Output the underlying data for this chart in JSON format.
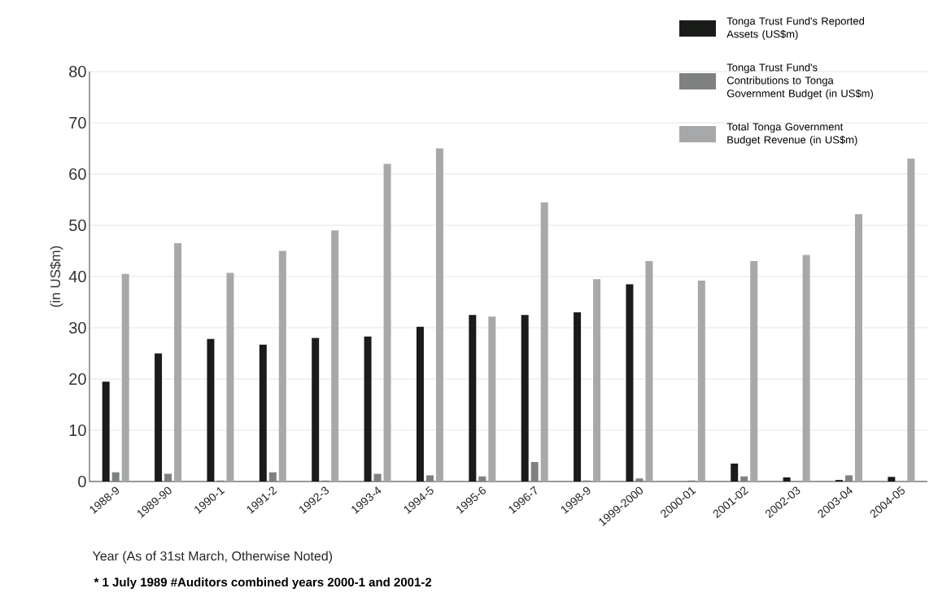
{
  "chart_data": {
    "type": "bar",
    "ylabel": "(in US$m)",
    "xlabel": "Year (As of 31st March, Otherwise Noted)",
    "annotations": [
      "* 1 July 1989 #Auditors combined years 2000-1 and 2001-2"
    ],
    "categories": [
      "1988-9",
      "1989-90",
      "1990-1",
      "1991-2",
      "1992-3",
      "1993-4",
      "1994-5",
      "1995-6",
      "1996-7",
      "1998-9",
      "1999-2000",
      "2000-01",
      "2001-02",
      "2002-03",
      "2003-04",
      "2004-05"
    ],
    "series": [
      {
        "name": "Tonga Trust Fund's Reported Assets (US$m)",
        "color": "#1a1c1a",
        "values": [
          19.5,
          25,
          27.8,
          26.7,
          28,
          28.3,
          30.2,
          32.5,
          32.5,
          33,
          38.5,
          null,
          3.5,
          0.8,
          0.3,
          0.9
        ]
      },
      {
        "name": "Tonga Trust Fund's Contributions to Tonga Government Budget (in US$m)",
        "color": "#7f8180",
        "values": [
          1.8,
          1.5,
          0.2,
          1.8,
          0.2,
          1.5,
          1.2,
          1,
          3.8,
          0.2,
          0.6,
          0.2,
          1,
          0,
          1.2,
          0
        ]
      },
      {
        "name": "Total Tonga Government Budget Revenue (in US$m)",
        "color": "#a6a8aa",
        "values": [
          40.5,
          46.5,
          40.7,
          45,
          49,
          62,
          65,
          32.2,
          54.5,
          39.5,
          43,
          39.2,
          43,
          44.2,
          52.2,
          63
        ]
      }
    ],
    "ylim": [
      0,
      80
    ],
    "yticks": [
      0,
      10,
      20,
      30,
      40,
      50,
      60,
      70,
      80
    ],
    "grid": "y",
    "legend": "top right"
  }
}
